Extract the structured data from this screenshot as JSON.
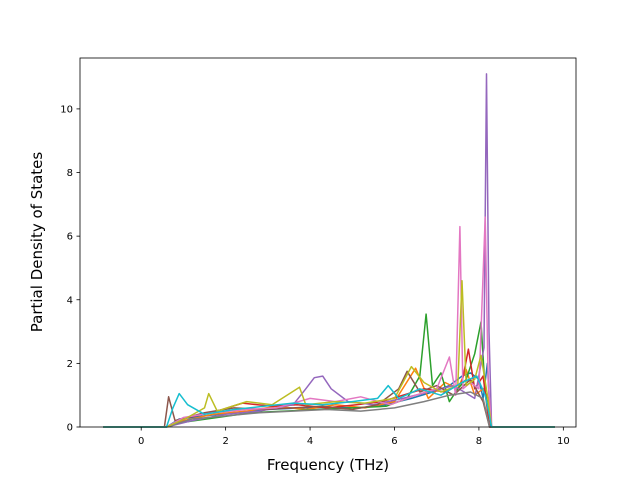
{
  "chart_data": {
    "type": "line",
    "title": "",
    "xlabel": "Frequency (THz)",
    "ylabel": "Partial Density of States",
    "xlim": [
      -1.45,
      10.3
    ],
    "ylim": [
      0,
      11.6
    ],
    "xticks": [
      0,
      2,
      4,
      6,
      8,
      10
    ],
    "yticks": [
      0,
      2,
      4,
      6,
      8,
      10
    ],
    "grid": false,
    "legend": "none",
    "series": [
      {
        "color": "#1f77b4",
        "points": [
          [
            -0.9,
            0
          ],
          [
            0.6,
            0
          ],
          [
            0.9,
            0.25
          ],
          [
            1.5,
            0.35
          ],
          [
            2.2,
            0.45
          ],
          [
            3,
            0.55
          ],
          [
            3.8,
            0.6
          ],
          [
            4.5,
            0.62
          ],
          [
            5.2,
            0.6
          ],
          [
            5.8,
            0.7
          ],
          [
            6.4,
            0.9
          ],
          [
            6.9,
            1.1
          ],
          [
            7.3,
            1.3
          ],
          [
            7.6,
            1.6
          ],
          [
            7.8,
            1.7
          ],
          [
            8.0,
            1.5
          ],
          [
            8.1,
            0.9
          ],
          [
            8.2,
            2.0
          ],
          [
            8.28,
            0
          ],
          [
            9.8,
            0
          ]
        ]
      },
      {
        "color": "#ff7f0e",
        "points": [
          [
            -0.9,
            0
          ],
          [
            0.6,
            0
          ],
          [
            1.0,
            0.2
          ],
          [
            1.7,
            0.4
          ],
          [
            2.5,
            0.5
          ],
          [
            3.2,
            0.65
          ],
          [
            3.9,
            0.55
          ],
          [
            4.6,
            0.7
          ],
          [
            5.3,
            0.6
          ],
          [
            6.0,
            0.8
          ],
          [
            6.5,
            1.85
          ],
          [
            6.8,
            0.9
          ],
          [
            7.2,
            1.4
          ],
          [
            7.5,
            1.2
          ],
          [
            7.7,
            1.8
          ],
          [
            7.9,
            1.0
          ],
          [
            8.1,
            1.2
          ],
          [
            8.22,
            0.9
          ],
          [
            8.3,
            0
          ],
          [
            9.8,
            0
          ]
        ]
      },
      {
        "color": "#2ca02c",
        "points": [
          [
            -0.9,
            0
          ],
          [
            0.6,
            0
          ],
          [
            1.0,
            0.15
          ],
          [
            1.8,
            0.3
          ],
          [
            2.6,
            0.45
          ],
          [
            3.4,
            0.5
          ],
          [
            4.2,
            0.55
          ],
          [
            5.0,
            0.6
          ],
          [
            5.8,
            0.65
          ],
          [
            6.3,
            0.9
          ],
          [
            6.6,
            1.6
          ],
          [
            6.75,
            3.55
          ],
          [
            6.9,
            1.3
          ],
          [
            7.1,
            1.7
          ],
          [
            7.3,
            0.8
          ],
          [
            7.5,
            1.2
          ],
          [
            7.7,
            1.5
          ],
          [
            7.9,
            2.3
          ],
          [
            8.05,
            3.3
          ],
          [
            8.15,
            1.1
          ],
          [
            8.3,
            0
          ],
          [
            9.8,
            0
          ]
        ]
      },
      {
        "color": "#d62728",
        "points": [
          [
            -0.9,
            0
          ],
          [
            0.6,
            0
          ],
          [
            1.1,
            0.3
          ],
          [
            1.8,
            0.5
          ],
          [
            2.4,
            0.75
          ],
          [
            3.1,
            0.65
          ],
          [
            3.7,
            0.7
          ],
          [
            4.4,
            0.6
          ],
          [
            5.1,
            0.7
          ],
          [
            5.7,
            0.8
          ],
          [
            6.2,
            1.0
          ],
          [
            6.7,
            1.2
          ],
          [
            7.2,
            1.1
          ],
          [
            7.6,
            1.4
          ],
          [
            7.75,
            2.45
          ],
          [
            7.9,
            1.2
          ],
          [
            8.1,
            1.6
          ],
          [
            8.25,
            0
          ],
          [
            9.8,
            0
          ]
        ]
      },
      {
        "color": "#9467bd",
        "points": [
          [
            -0.9,
            0
          ],
          [
            0.6,
            0
          ],
          [
            1.2,
            0.2
          ],
          [
            2.0,
            0.4
          ],
          [
            2.8,
            0.5
          ],
          [
            3.6,
            0.7
          ],
          [
            3.9,
            1.2
          ],
          [
            4.1,
            1.55
          ],
          [
            4.3,
            1.6
          ],
          [
            4.5,
            1.2
          ],
          [
            4.9,
            0.8
          ],
          [
            5.5,
            0.7
          ],
          [
            6.2,
            0.9
          ],
          [
            6.8,
            1.1
          ],
          [
            7.4,
            1.3
          ],
          [
            7.9,
            0.9
          ],
          [
            8.12,
            2.5
          ],
          [
            8.18,
            11.1
          ],
          [
            8.24,
            3.0
          ],
          [
            8.3,
            0
          ],
          [
            9.8,
            0
          ]
        ]
      },
      {
        "color": "#8c564b",
        "points": [
          [
            -0.9,
            0
          ],
          [
            0.55,
            0
          ],
          [
            0.65,
            0.95
          ],
          [
            0.8,
            0.2
          ],
          [
            1.5,
            0.45
          ],
          [
            2.2,
            0.6
          ],
          [
            2.9,
            0.55
          ],
          [
            3.6,
            0.6
          ],
          [
            4.3,
            0.65
          ],
          [
            5.0,
            0.55
          ],
          [
            5.6,
            0.7
          ],
          [
            6.1,
            1.2
          ],
          [
            6.3,
            1.75
          ],
          [
            6.6,
            1.1
          ],
          [
            7.0,
            1.3
          ],
          [
            7.4,
            1.0
          ],
          [
            7.8,
            1.5
          ],
          [
            8.1,
            0.8
          ],
          [
            8.25,
            0
          ],
          [
            9.8,
            0
          ]
        ]
      },
      {
        "color": "#e377c2",
        "points": [
          [
            -0.9,
            0
          ],
          [
            0.6,
            0
          ],
          [
            1.0,
            0.3
          ],
          [
            1.7,
            0.45
          ],
          [
            2.5,
            0.55
          ],
          [
            3.2,
            0.6
          ],
          [
            4.0,
            0.9
          ],
          [
            4.6,
            0.8
          ],
          [
            5.2,
            0.95
          ],
          [
            5.9,
            0.7
          ],
          [
            6.5,
            1.0
          ],
          [
            7.0,
            1.2
          ],
          [
            7.3,
            2.2
          ],
          [
            7.45,
            1.0
          ],
          [
            7.55,
            6.3
          ],
          [
            7.62,
            1.2
          ],
          [
            7.8,
            1.4
          ],
          [
            8.0,
            1.2
          ],
          [
            8.15,
            6.6
          ],
          [
            8.22,
            1.4
          ],
          [
            8.3,
            0
          ],
          [
            9.8,
            0
          ]
        ]
      },
      {
        "color": "#7f7f7f",
        "points": [
          [
            -0.9,
            0
          ],
          [
            0.6,
            0
          ],
          [
            1.2,
            0.25
          ],
          [
            2.0,
            0.35
          ],
          [
            2.8,
            0.45
          ],
          [
            3.6,
            0.5
          ],
          [
            4.4,
            0.55
          ],
          [
            5.2,
            0.5
          ],
          [
            6.0,
            0.6
          ],
          [
            6.7,
            0.8
          ],
          [
            7.3,
            1.0
          ],
          [
            7.8,
            1.1
          ],
          [
            8.1,
            0.9
          ],
          [
            8.25,
            0
          ],
          [
            9.8,
            0
          ]
        ]
      },
      {
        "color": "#bcbd22",
        "points": [
          [
            -0.9,
            0
          ],
          [
            0.6,
            0
          ],
          [
            1.1,
            0.3
          ],
          [
            1.5,
            0.6
          ],
          [
            1.6,
            1.05
          ],
          [
            1.8,
            0.5
          ],
          [
            2.5,
            0.8
          ],
          [
            3.1,
            0.7
          ],
          [
            3.75,
            1.25
          ],
          [
            3.9,
            0.7
          ],
          [
            4.6,
            0.8
          ],
          [
            5.3,
            0.75
          ],
          [
            6.0,
            0.9
          ],
          [
            6.4,
            1.9
          ],
          [
            6.7,
            1.4
          ],
          [
            7.1,
            1.1
          ],
          [
            7.5,
            1.3
          ],
          [
            7.6,
            4.6
          ],
          [
            7.7,
            1.3
          ],
          [
            7.9,
            1.5
          ],
          [
            8.05,
            2.25
          ],
          [
            8.2,
            1.0
          ],
          [
            8.3,
            0
          ],
          [
            9.8,
            0
          ]
        ]
      },
      {
        "color": "#17becf",
        "points": [
          [
            -0.9,
            0
          ],
          [
            0.6,
            0
          ],
          [
            0.75,
            0.6
          ],
          [
            0.9,
            1.05
          ],
          [
            1.1,
            0.7
          ],
          [
            1.5,
            0.4
          ],
          [
            2.2,
            0.55
          ],
          [
            2.9,
            0.65
          ],
          [
            3.6,
            0.75
          ],
          [
            4.3,
            0.7
          ],
          [
            5.0,
            0.8
          ],
          [
            5.6,
            0.9
          ],
          [
            5.85,
            1.3
          ],
          [
            6.1,
            0.9
          ],
          [
            6.6,
            1.2
          ],
          [
            7.1,
            1.0
          ],
          [
            7.6,
            1.4
          ],
          [
            7.95,
            1.6
          ],
          [
            8.15,
            1.0
          ],
          [
            8.3,
            0
          ],
          [
            9.8,
            0
          ]
        ]
      }
    ]
  }
}
